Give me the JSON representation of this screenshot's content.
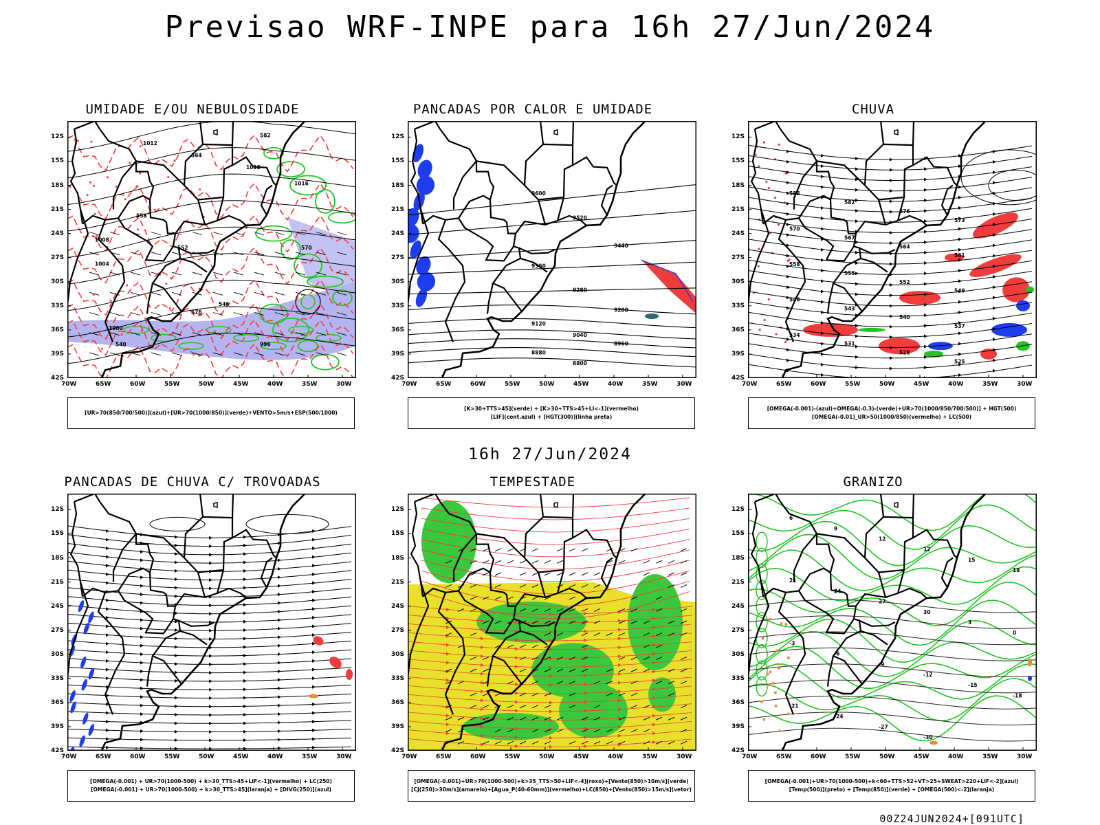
{
  "title": "Previsao WRF-INPE  para 16h 27/Jun/2024",
  "subtitle": "16h 27/Jun/2024",
  "footer": "00Z24JUN2024+[091UTC]",
  "axes": {
    "lat_labels": [
      "12S",
      "15S",
      "18S",
      "21S",
      "24S",
      "27S",
      "30S",
      "33S",
      "36S",
      "39S",
      "42S"
    ],
    "lon_labels": [
      "70W",
      "65W",
      "60W",
      "55W",
      "50W",
      "45W",
      "40W",
      "35W",
      "30W"
    ]
  },
  "colors": {
    "red": "#f03c3c",
    "green": "#22c422",
    "blue": "#1e3cf0",
    "lavender": "#b4b4f0",
    "yellow": "#e8e02a",
    "green_fill": "#3cc83c",
    "orange": "#e88a3c"
  },
  "panels": [
    {
      "title": "UMIDADE E/OU NEBULOSIDADE",
      "legend": [
        "[UR>70(850/700/500)](azul)+[UR>70(1000/850)](verde)+VENTO>5m/s+ESP(500/1000)"
      ],
      "contour_labels": [
        "1012",
        "1012",
        "1016",
        "1008",
        "1004",
        "1000",
        "996",
        "582",
        "576",
        "570",
        "564",
        "558",
        "552",
        "546",
        "540"
      ]
    },
    {
      "title": "PANCADAS POR CALOR E UMIDADE",
      "legend": [
        "[K>30+TTS>45](verde) + [K>30+TTS>45+LI<-1](vermelho)",
        "[LIF](cont.azul) + [HGT(300)](linha preta)"
      ],
      "contour_labels": [
        "9600",
        "9520",
        "9440",
        "9360",
        "9280",
        "9200",
        "9120",
        "9040",
        "8960",
        "8880",
        "8800"
      ]
    },
    {
      "title": "CHUVA",
      "legend": [
        "[OMEGA(-0.001)-(azul)+OMEGA(-0.3)-(verde)+UR>70(1000/850/700/500)] + HGT(500)",
        "[OMEGA(-0.01)_UR>50(1000/850)(vermelho) + LC(500)"
      ],
      "contour_labels": [
        "588",
        "582",
        "576",
        "573",
        "570",
        "567",
        "564",
        "561",
        "558",
        "555",
        "552",
        "549",
        "546",
        "543",
        "540",
        "537",
        "534",
        "531",
        "528",
        "525"
      ]
    },
    {
      "title": "PANCADAS DE CHUVA C/ TROVOADAS",
      "legend": [
        "[OMEGA(-0.001) + UR>70(1000-500) + k>30_TTS>45+LIF<-1](vermelho) + LC(250)",
        "[OMEGA(-0.001) + UR>70(1000-500) + k>30_TTS>45](laranja) + [DIVG(250)](azul)"
      ],
      "contour_labels": []
    },
    {
      "title": "TEMPESTADE",
      "legend": [
        "[OMEGA(-0.001)+UR>70(1000-500)+k>35_TTS>50+LIF<-4](roxo)+[Vento(850)>10m/s](verde)",
        "[CJ(250)>30m/s](amarelo)+[Agua_P(40-60mm)](vermelho)+LC(850)+[Vento(850)>15m/s](vetor)"
      ],
      "contour_labels": []
    },
    {
      "title": "GRANIZO",
      "legend": [
        "[OMEGA(-0.001)+UR>70(1000-500)+k<60+TTS>52+VT>25+SWEAT>220+LIF<-2](azul)",
        "[Temp(500)](preto) + [Temp(850)](verde) + [OMEGA(500)<-2](laranja)"
      ],
      "contour_labels": [
        "6",
        "9",
        "12",
        "12",
        "15",
        "18",
        "21",
        "24",
        "27",
        "30",
        "3",
        "0",
        "-3",
        "-6",
        "-9",
        "-12",
        "-15",
        "-18",
        "-21",
        "-24",
        "-27",
        "-30"
      ]
    }
  ]
}
